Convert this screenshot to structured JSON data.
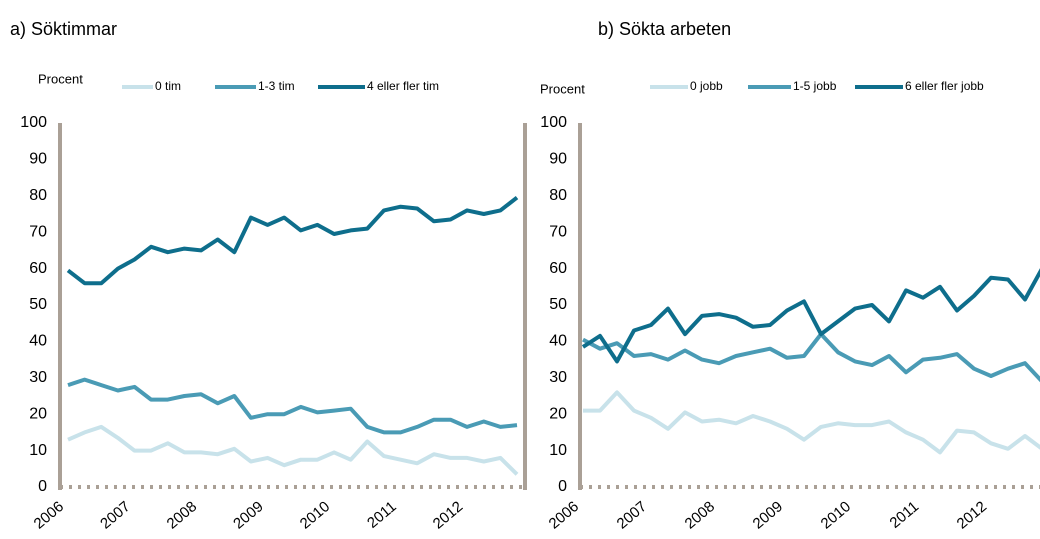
{
  "chart_data": [
    {
      "type": "line",
      "title": "a) Söktimmar",
      "ylabel": "Procent",
      "categories": [
        "2006",
        null,
        null,
        null,
        "2007",
        null,
        null,
        null,
        "2008",
        null,
        null,
        null,
        "2009",
        null,
        null,
        null,
        "2010",
        null,
        null,
        null,
        "2011",
        null,
        null,
        null,
        "2012",
        null,
        null,
        null
      ],
      "series": [
        {
          "name": "0 tim",
          "color": "#c8e2ea",
          "values": [
            13,
            15,
            16.5,
            13.5,
            10,
            10,
            12,
            9.5,
            9.5,
            9,
            10.5,
            7,
            8,
            6,
            7.5,
            7.5,
            9.5,
            7.5,
            12.5,
            8.5,
            7.5,
            6.5,
            9,
            8,
            8,
            7,
            8,
            3.5
          ]
        },
        {
          "name": "1-3 tim",
          "color": "#4a9bb5",
          "values": [
            28,
            29.5,
            28,
            26.5,
            27.5,
            24,
            24,
            25,
            25.5,
            23,
            25,
            19,
            20,
            20,
            22,
            20.5,
            21,
            21.5,
            16.5,
            15,
            15,
            16.5,
            18.5,
            18.5,
            16.5,
            18,
            16.5,
            17
          ]
        },
        {
          "name": "4 eller fler tim",
          "color": "#0e6e8c",
          "values": [
            59.5,
            56,
            56,
            60,
            62.5,
            66,
            64.5,
            65.5,
            65,
            68,
            64.5,
            74,
            72,
            74,
            70.5,
            72,
            69.5,
            70.5,
            71,
            76,
            77,
            76.5,
            73,
            73.5,
            76,
            75,
            76,
            79.5
          ]
        }
      ],
      "ylim": [
        0,
        100
      ],
      "yticks": [
        0,
        10,
        20,
        30,
        40,
        50,
        60,
        70,
        80,
        90,
        100
      ]
    },
    {
      "type": "line",
      "title": "b) Sökta arbeten",
      "ylabel": "Procent",
      "categories": [
        "2006",
        null,
        null,
        null,
        "2007",
        null,
        null,
        null,
        "2008",
        null,
        null,
        null,
        "2009",
        null,
        null,
        null,
        "2010",
        null,
        null,
        null,
        "2011",
        null,
        null,
        null,
        "2012",
        null,
        null,
        null
      ],
      "series": [
        {
          "name": "0 jobb",
          "color": "#c8e2ea",
          "values": [
            21,
            21,
            26,
            21,
            19,
            16,
            20.5,
            18,
            18.5,
            17.5,
            19.5,
            18,
            16,
            13,
            16.5,
            17.5,
            17,
            17,
            18,
            15,
            13,
            9.5,
            15.5,
            15,
            12,
            10.5,
            14,
            10.5
          ]
        },
        {
          "name": "1-5 jobb",
          "color": "#4a9bb5",
          "values": [
            40.5,
            38,
            39.5,
            36,
            36.5,
            35,
            37.5,
            35,
            34,
            36,
            37,
            38,
            35.5,
            36,
            42,
            37,
            34.5,
            33.5,
            36,
            31.5,
            35,
            35.5,
            36.5,
            32.5,
            30.5,
            32.5,
            34,
            29
          ]
        },
        {
          "name": "6 eller fler jobb",
          "color": "#0e6e8c",
          "values": [
            38.5,
            41.5,
            34.5,
            43,
            44.5,
            49,
            42,
            47,
            47.5,
            46.5,
            44,
            44.5,
            48.5,
            51,
            42,
            45.5,
            49,
            50,
            45.5,
            54,
            52,
            55,
            48.5,
            52.5,
            57.5,
            57,
            51.5,
            60
          ]
        }
      ],
      "ylim": [
        0,
        100
      ],
      "yticks": [
        0,
        10,
        20,
        30,
        40,
        50,
        60,
        70,
        80,
        90,
        100
      ]
    }
  ]
}
